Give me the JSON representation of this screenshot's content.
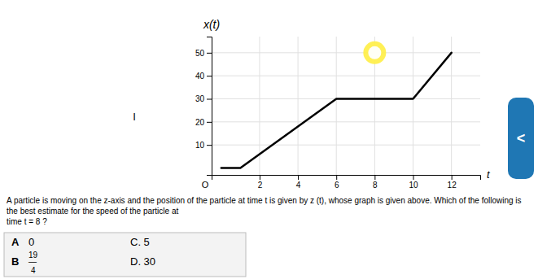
{
  "chart_data": {
    "type": "line",
    "title": "x(t)",
    "x_label": "t",
    "x": [
      0,
      1,
      6,
      10,
      12
    ],
    "values": [
      0,
      0,
      30,
      30,
      50
    ],
    "color": "#000000",
    "xlim": [
      -0.5,
      13.5
    ],
    "ylim": [
      -3,
      57
    ],
    "xticks": [
      2,
      4,
      6,
      8,
      10,
      12
    ],
    "yticks": [
      10,
      20,
      30,
      40,
      50
    ],
    "grid": true,
    "highlight": {
      "x": 8,
      "y": 50,
      "color": "#ffee44"
    },
    "annotations": [
      "O",
      "I",
      "A particle is moving on the z-axis and the position of the particle at time t is given by z (t), whose graph is given above. Which of the following is the best estimate for the speed of the particle at",
      "time t = 8 ?",
      "A",
      "0",
      "C. 5",
      "B",
      "19",
      "—",
      "4",
      "D. 30",
      "<"
    ]
  }
}
